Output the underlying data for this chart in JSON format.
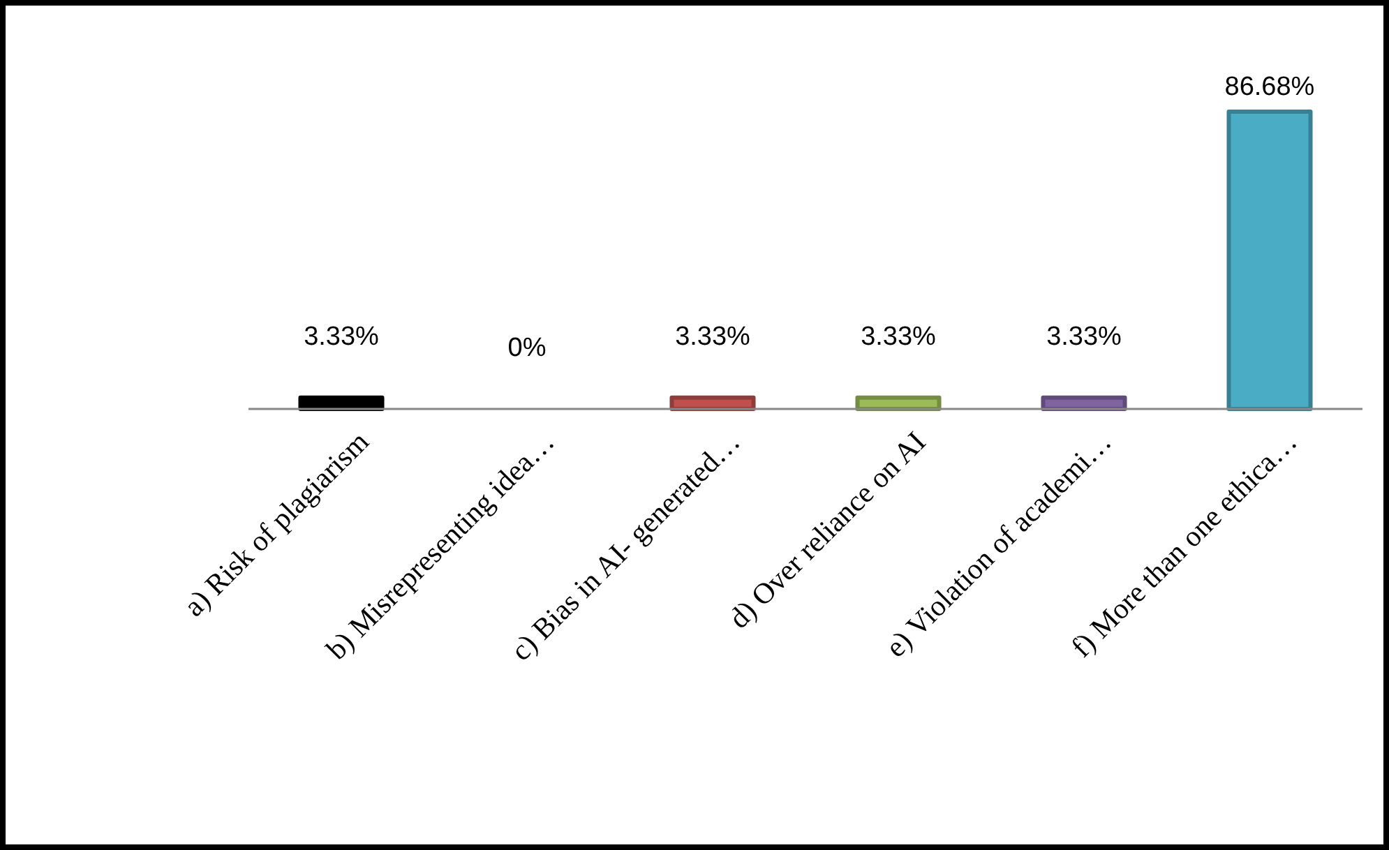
{
  "chart_data": {
    "type": "bar",
    "categories": [
      "a) Risk of plagiarism",
      "b) Misrepresenting idea…",
      "c) Bias in AI- generated…",
      "d) Over reliance on AI",
      "e) Violation of academi…",
      "f) More than one ethica…"
    ],
    "values": [
      3.33,
      0,
      3.33,
      3.33,
      3.33,
      86.68
    ],
    "value_labels": [
      "3.33%",
      "0%",
      "3.33%",
      "3.33%",
      "3.33%",
      "86.68%"
    ],
    "colors": [
      "#000000",
      "#4f81bd",
      "#c0504d",
      "#9bbb59",
      "#8064a2",
      "#4bacc6"
    ],
    "relative": false
  }
}
